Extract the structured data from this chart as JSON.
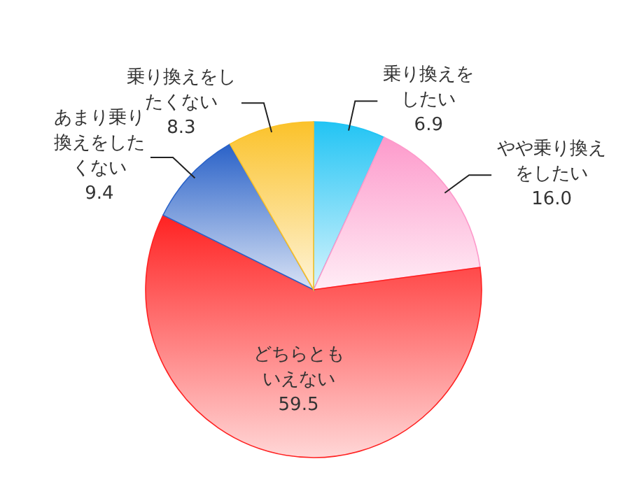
{
  "chart_data": {
    "type": "pie",
    "categories": [
      "乗り換えをしたい",
      "やや乗り換えをしたい",
      "どちらともいえない",
      "あまり乗り換えをしたくない",
      "乗り換えをしたくない"
    ],
    "values": [
      6.9,
      16.0,
      59.5,
      9.4,
      8.3
    ],
    "value_labels": [
      "6.9",
      "16.0",
      "59.5",
      "9.4",
      "8.3"
    ],
    "colors": [
      "#22c4f4",
      "#fd9acb",
      "#ff2222",
      "#2a62c8",
      "#fbc22a"
    ]
  }
}
